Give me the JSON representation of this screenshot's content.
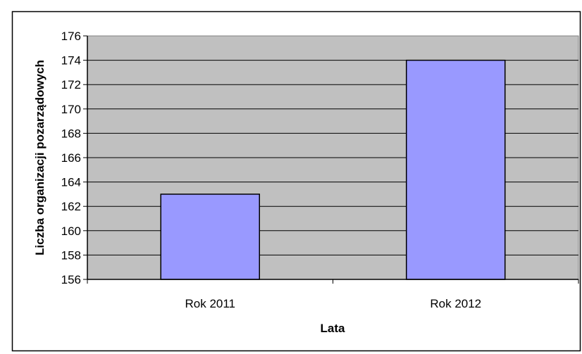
{
  "colors": {
    "plot_background": "#c0c0c0",
    "bar_fill": "#9999ff",
    "border": "#000000",
    "page_background": "#ffffff"
  },
  "chart_data": {
    "type": "bar",
    "categories": [
      "Rok 2011",
      "Rok 2012"
    ],
    "values": [
      163,
      174
    ],
    "xlabel": "Lata",
    "ylabel": "Liczba organizacji pozarządowych",
    "ylim": [
      156,
      176
    ],
    "ytick_step": 2,
    "yticks": [
      "156",
      "158",
      "160",
      "162",
      "164",
      "166",
      "168",
      "170",
      "172",
      "174",
      "176"
    ],
    "grid": true,
    "legend": "none"
  }
}
